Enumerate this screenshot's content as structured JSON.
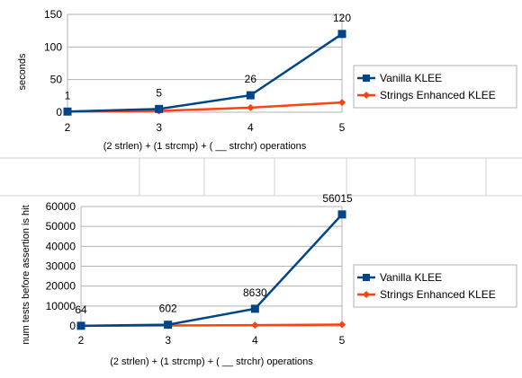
{
  "chart_data": [
    {
      "type": "line",
      "x": [
        2,
        3,
        4,
        5
      ],
      "xlabel": "(2 strlen) + (1 strcmp) + ( __ strchr) operations",
      "ylabel": "seconds",
      "ylim": [
        0,
        150
      ],
      "yticks": [
        0,
        50,
        100,
        150
      ],
      "grid": true,
      "legend_position": "right",
      "series": [
        {
          "name": "Vanilla KLEE",
          "values": [
            1,
            5,
            26,
            120
          ],
          "color": "#004586",
          "marker": "square",
          "data_labels": [
            "1",
            "5",
            "26",
            "120"
          ]
        },
        {
          "name": "Strings Enhanced KLEE",
          "values": [
            1,
            2,
            7,
            15
          ],
          "color": "#ff420e",
          "marker": "diamond"
        }
      ]
    },
    {
      "type": "line",
      "x": [
        2,
        3,
        4,
        5
      ],
      "xlabel": "(2 strlen) + (1 strcmp) + ( __ strchr) operations",
      "ylabel": "num tests before assertion is hit",
      "ylim": [
        0,
        60000
      ],
      "yticks": [
        0,
        10000,
        20000,
        30000,
        40000,
        50000,
        60000
      ],
      "grid": true,
      "legend_position": "right",
      "series": [
        {
          "name": "Vanilla KLEE",
          "values": [
            64,
            602,
            8630,
            56015
          ],
          "color": "#004586",
          "marker": "square",
          "data_labels": [
            "64",
            "602",
            "8630",
            "56015"
          ]
        },
        {
          "name": "Strings Enhanced KLEE",
          "values": [
            64,
            200,
            400,
            700
          ],
          "color": "#ff420e",
          "marker": "diamond"
        }
      ]
    }
  ]
}
